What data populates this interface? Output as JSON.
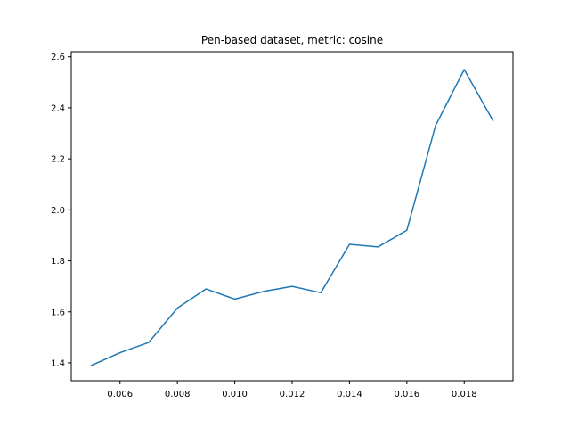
{
  "chart_data": {
    "type": "line",
    "title": "Pen-based dataset, metric: cosine",
    "xlabel": "",
    "ylabel": "",
    "xlim": [
      0.0043,
      0.0197
    ],
    "ylim": [
      1.33,
      2.62
    ],
    "x_ticks": [
      0.006,
      0.008,
      0.01,
      0.012,
      0.014,
      0.016,
      0.018
    ],
    "x_tick_labels": [
      "0.006",
      "0.008",
      "0.010",
      "0.012",
      "0.014",
      "0.016",
      "0.018"
    ],
    "y_ticks": [
      1.4,
      1.6,
      1.8,
      2.0,
      2.2,
      2.4,
      2.6
    ],
    "y_tick_labels": [
      "1.4",
      "1.6",
      "1.8",
      "2.0",
      "2.2",
      "2.4",
      "2.6"
    ],
    "grid": false,
    "series": [
      {
        "color": "#1f77b4",
        "x": [
          0.005,
          0.006,
          0.007,
          0.008,
          0.009,
          0.01,
          0.011,
          0.012,
          0.013,
          0.014,
          0.015,
          0.016,
          0.017,
          0.018,
          0.019
        ],
        "y": [
          1.39,
          1.44,
          1.48,
          1.615,
          1.69,
          1.65,
          1.68,
          1.7,
          1.675,
          1.865,
          1.855,
          1.92,
          2.33,
          2.55,
          2.35
        ]
      }
    ]
  }
}
